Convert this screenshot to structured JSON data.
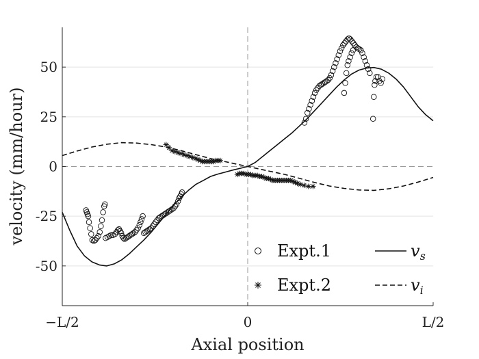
{
  "chart_data": {
    "type": "scatter",
    "title": "",
    "xlabel": "Axial position",
    "ylabel": "velocity (mm/hour)",
    "xlim": [
      -0.5,
      0.5
    ],
    "ylim": [
      -70,
      70
    ],
    "x_ticks": [
      {
        "value": -0.5,
        "label": "−L/2"
      },
      {
        "value": 0,
        "label": "0"
      },
      {
        "value": 0.5,
        "label": "L/2"
      }
    ],
    "y_ticks": [
      {
        "value": 50,
        "label": "50"
      },
      {
        "value": 25,
        "label": "25"
      },
      {
        "value": 0,
        "label": "0"
      },
      {
        "value": -25,
        "label": "-25"
      },
      {
        "value": -50,
        "label": "-50"
      }
    ],
    "grid": true,
    "legend_position": "bottom-right",
    "series": [
      {
        "name": "Expt.1",
        "style": "open-circle",
        "color": "#111111",
        "points": [
          [
            -0.436,
            -22
          ],
          [
            -0.434,
            -23
          ],
          [
            -0.432,
            -24
          ],
          [
            -0.43,
            -25
          ],
          [
            -0.428,
            -28
          ],
          [
            -0.425,
            -31
          ],
          [
            -0.422,
            -34
          ],
          [
            -0.419,
            -37
          ],
          [
            -0.415,
            -37.5
          ],
          [
            -0.411,
            -37
          ],
          [
            -0.407,
            -36
          ],
          [
            -0.403,
            -35
          ],
          [
            -0.399,
            -33
          ],
          [
            -0.396,
            -30
          ],
          [
            -0.393,
            -27
          ],
          [
            -0.39,
            -23
          ],
          [
            -0.387,
            -20
          ],
          [
            -0.385,
            -19
          ],
          [
            -0.383,
            -36
          ],
          [
            -0.378,
            -35.5
          ],
          [
            -0.373,
            -35
          ],
          [
            -0.368,
            -34.5
          ],
          [
            -0.363,
            -34.5
          ],
          [
            -0.358,
            -34
          ],
          [
            -0.354,
            -33
          ],
          [
            -0.35,
            -32
          ],
          [
            -0.347,
            -31.5
          ],
          [
            -0.344,
            -32.5
          ],
          [
            -0.341,
            -33.5
          ],
          [
            -0.338,
            -35
          ],
          [
            -0.335,
            -36
          ],
          [
            -0.332,
            -36.5
          ],
          [
            -0.328,
            -36
          ],
          [
            -0.324,
            -35.5
          ],
          [
            -0.32,
            -35
          ],
          [
            -0.316,
            -34.5
          ],
          [
            -0.312,
            -34
          ],
          [
            -0.308,
            -33.5
          ],
          [
            -0.304,
            -33
          ],
          [
            -0.3,
            -32
          ],
          [
            -0.296,
            -31
          ],
          [
            -0.292,
            -29.5
          ],
          [
            -0.289,
            -28
          ],
          [
            -0.286,
            -26.5
          ],
          [
            -0.283,
            -25
          ],
          [
            -0.28,
            -33.5
          ],
          [
            -0.276,
            -33
          ],
          [
            -0.272,
            -32.5
          ],
          [
            -0.268,
            -32
          ],
          [
            -0.264,
            -31.5
          ],
          [
            -0.26,
            -31
          ],
          [
            -0.256,
            -30
          ],
          [
            -0.252,
            -29
          ],
          [
            -0.248,
            -28
          ],
          [
            -0.244,
            -27
          ],
          [
            -0.24,
            -26
          ],
          [
            -0.236,
            -25.5
          ],
          [
            -0.232,
            -25
          ],
          [
            -0.228,
            -24.5
          ],
          [
            -0.224,
            -24
          ],
          [
            -0.22,
            -23.5
          ],
          [
            -0.216,
            -23
          ],
          [
            -0.212,
            -22.5
          ],
          [
            -0.208,
            -22
          ],
          [
            -0.204,
            -21.5
          ],
          [
            -0.2,
            -21
          ],
          [
            -0.196,
            -20
          ],
          [
            -0.192,
            -19
          ],
          [
            -0.188,
            -17.5
          ],
          [
            -0.185,
            -16
          ],
          [
            -0.182,
            -15
          ],
          [
            -0.179,
            -14
          ],
          [
            -0.177,
            -13
          ],
          [
            0.153,
            22
          ],
          [
            0.157,
            24
          ],
          [
            0.161,
            27
          ],
          [
            0.165,
            29
          ],
          [
            0.169,
            31
          ],
          [
            0.173,
            33
          ],
          [
            0.177,
            35
          ],
          [
            0.181,
            37
          ],
          [
            0.185,
            38.5
          ],
          [
            0.189,
            39.5
          ],
          [
            0.193,
            40.5
          ],
          [
            0.197,
            41
          ],
          [
            0.201,
            41.5
          ],
          [
            0.205,
            42
          ],
          [
            0.209,
            42.5
          ],
          [
            0.213,
            43
          ],
          [
            0.217,
            43.5
          ],
          [
            0.221,
            44.5
          ],
          [
            0.225,
            46
          ],
          [
            0.229,
            48
          ],
          [
            0.233,
            50
          ],
          [
            0.237,
            52
          ],
          [
            0.241,
            54
          ],
          [
            0.245,
            56
          ],
          [
            0.249,
            58
          ],
          [
            0.253,
            59.5
          ],
          [
            0.257,
            61
          ],
          [
            0.261,
            62
          ],
          [
            0.265,
            63
          ],
          [
            0.269,
            64
          ],
          [
            0.273,
            64.5
          ],
          [
            0.277,
            64
          ],
          [
            0.281,
            63
          ],
          [
            0.285,
            62
          ],
          [
            0.289,
            61
          ],
          [
            0.293,
            60
          ],
          [
            0.297,
            59.5
          ],
          [
            0.301,
            59
          ],
          [
            0.305,
            58.5
          ],
          [
            0.309,
            57
          ],
          [
            0.313,
            55
          ],
          [
            0.317,
            53
          ],
          [
            0.321,
            51
          ],
          [
            0.325,
            49
          ],
          [
            0.329,
            47
          ],
          [
            0.26,
            37
          ],
          [
            0.263,
            42
          ],
          [
            0.266,
            47
          ],
          [
            0.269,
            51
          ],
          [
            0.272,
            53
          ],
          [
            0.276,
            55
          ],
          [
            0.28,
            57
          ],
          [
            0.284,
            58.5
          ],
          [
            0.338,
            24
          ],
          [
            0.34,
            35
          ],
          [
            0.342,
            41
          ],
          [
            0.344,
            43
          ],
          [
            0.347,
            45
          ],
          [
            0.351,
            45
          ],
          [
            0.355,
            43
          ],
          [
            0.359,
            42
          ],
          [
            0.363,
            44
          ]
        ]
      },
      {
        "name": "Expt.2",
        "style": "asterisk",
        "color": "#111111",
        "points": [
          [
            -0.22,
            11
          ],
          [
            -0.212,
            9.5
          ],
          [
            -0.204,
            8
          ],
          [
            -0.196,
            7.5
          ],
          [
            -0.188,
            7
          ],
          [
            -0.18,
            6.5
          ],
          [
            -0.172,
            6
          ],
          [
            -0.164,
            5.5
          ],
          [
            -0.156,
            5
          ],
          [
            -0.148,
            4.5
          ],
          [
            -0.14,
            4
          ],
          [
            -0.134,
            3.5
          ],
          [
            -0.128,
            3
          ],
          [
            -0.122,
            2.5
          ],
          [
            -0.116,
            2.5
          ],
          [
            -0.11,
            2.5
          ],
          [
            -0.104,
            2.5
          ],
          [
            -0.098,
            2.5
          ],
          [
            -0.092,
            2.5
          ],
          [
            -0.086,
            3
          ],
          [
            -0.08,
            3
          ],
          [
            -0.074,
            3
          ],
          [
            -0.028,
            -4
          ],
          [
            -0.022,
            -3.5
          ],
          [
            -0.016,
            -3.5
          ],
          [
            -0.01,
            -3.5
          ],
          [
            -0.004,
            -4
          ],
          [
            0.002,
            -4
          ],
          [
            0.008,
            -4
          ],
          [
            0.014,
            -4.5
          ],
          [
            0.02,
            -4.5
          ],
          [
            0.026,
            -4.5
          ],
          [
            0.032,
            -5
          ],
          [
            0.038,
            -5
          ],
          [
            0.044,
            -5.5
          ],
          [
            0.05,
            -6
          ],
          [
            0.056,
            -6
          ],
          [
            0.062,
            -6.5
          ],
          [
            0.068,
            -7
          ],
          [
            0.074,
            -7
          ],
          [
            0.08,
            -7
          ],
          [
            0.086,
            -7
          ],
          [
            0.092,
            -7
          ],
          [
            0.098,
            -7
          ],
          [
            0.104,
            -7
          ],
          [
            0.11,
            -7
          ],
          [
            0.116,
            -7
          ],
          [
            0.122,
            -7.5
          ],
          [
            0.128,
            -8
          ],
          [
            0.134,
            -8.5
          ],
          [
            0.142,
            -9
          ],
          [
            0.152,
            -9.5
          ],
          [
            0.164,
            -10
          ],
          [
            0.176,
            -10
          ]
        ]
      },
      {
        "name": "v_s",
        "label_base": "v",
        "label_sub": "s",
        "style": "solid-line",
        "color": "#111111",
        "points": [
          [
            -0.5,
            -23
          ],
          [
            -0.48,
            -32
          ],
          [
            -0.46,
            -40
          ],
          [
            -0.44,
            -45
          ],
          [
            -0.42,
            -48
          ],
          [
            -0.4,
            -49.5
          ],
          [
            -0.38,
            -50
          ],
          [
            -0.36,
            -49
          ],
          [
            -0.34,
            -47
          ],
          [
            -0.32,
            -44
          ],
          [
            -0.3,
            -40.5
          ],
          [
            -0.28,
            -37
          ],
          [
            -0.26,
            -33
          ],
          [
            -0.24,
            -28.5
          ],
          [
            -0.22,
            -24
          ],
          [
            -0.2,
            -19.5
          ],
          [
            -0.18,
            -15.5
          ],
          [
            -0.16,
            -12
          ],
          [
            -0.14,
            -9
          ],
          [
            -0.12,
            -7
          ],
          [
            -0.1,
            -5
          ],
          [
            -0.08,
            -3.8
          ],
          [
            -0.06,
            -2.8
          ],
          [
            -0.04,
            -1.8
          ],
          [
            -0.02,
            -0.9
          ],
          [
            0.0,
            0
          ],
          [
            0.02,
            2
          ],
          [
            0.04,
            5
          ],
          [
            0.06,
            8
          ],
          [
            0.08,
            11
          ],
          [
            0.1,
            14
          ],
          [
            0.12,
            17
          ],
          [
            0.14,
            20.5
          ],
          [
            0.16,
            24
          ],
          [
            0.18,
            28
          ],
          [
            0.2,
            32
          ],
          [
            0.22,
            36
          ],
          [
            0.24,
            40
          ],
          [
            0.26,
            43.5
          ],
          [
            0.28,
            46.5
          ],
          [
            0.3,
            48.5
          ],
          [
            0.32,
            49.5
          ],
          [
            0.34,
            49.8
          ],
          [
            0.36,
            49
          ],
          [
            0.38,
            47
          ],
          [
            0.4,
            44
          ],
          [
            0.42,
            40
          ],
          [
            0.44,
            35
          ],
          [
            0.46,
            30
          ],
          [
            0.48,
            26
          ],
          [
            0.5,
            23
          ]
        ]
      },
      {
        "name": "v_i",
        "label_base": "v",
        "label_sub": "i",
        "style": "dashed-line",
        "color": "#111111",
        "points": [
          [
            -0.5,
            5.5
          ],
          [
            -0.46,
            7.8
          ],
          [
            -0.42,
            9.8
          ],
          [
            -0.38,
            11.2
          ],
          [
            -0.34,
            12
          ],
          [
            -0.3,
            11.8
          ],
          [
            -0.26,
            11
          ],
          [
            -0.22,
            9.8
          ],
          [
            -0.18,
            8
          ],
          [
            -0.14,
            6
          ],
          [
            -0.1,
            4
          ],
          [
            -0.06,
            2.4
          ],
          [
            -0.02,
            0.8
          ],
          [
            0.0,
            0
          ],
          [
            0.02,
            -0.8
          ],
          [
            0.06,
            -2.4
          ],
          [
            0.1,
            -4
          ],
          [
            0.14,
            -6
          ],
          [
            0.18,
            -8
          ],
          [
            0.22,
            -9.8
          ],
          [
            0.26,
            -11
          ],
          [
            0.3,
            -11.8
          ],
          [
            0.34,
            -12
          ],
          [
            0.38,
            -11.2
          ],
          [
            0.42,
            -9.8
          ],
          [
            0.46,
            -7.8
          ],
          [
            0.5,
            -5.5
          ]
        ]
      }
    ]
  }
}
